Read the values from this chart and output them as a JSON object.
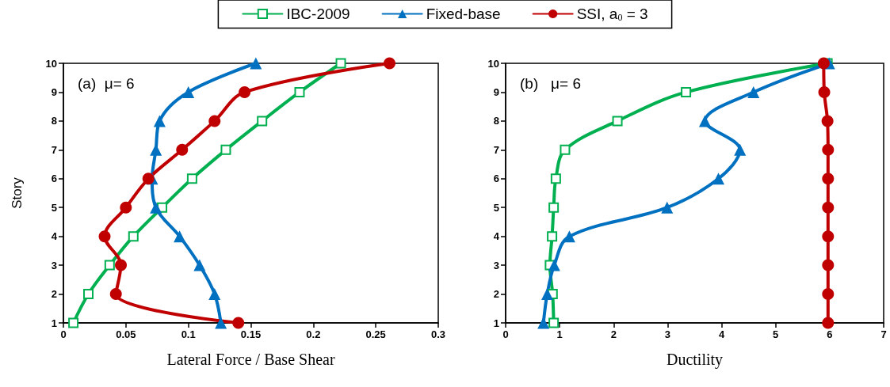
{
  "chart_data": [
    {
      "type": "line",
      "xlabel": "Lateral Force / Base Shear",
      "ylabel": "Story",
      "annotations": [
        "(a)  μ= 6"
      ],
      "xlim": [
        0,
        0.3
      ],
      "xticks": [
        0,
        0.05,
        0.1,
        0.15,
        0.2,
        0.25,
        0.3
      ],
      "ylim": [
        1,
        10
      ],
      "yticks": [
        1,
        2,
        3,
        4,
        5,
        6,
        7,
        8,
        9,
        10
      ],
      "grid": false,
      "legend": "top",
      "line_style": "solid",
      "series": [
        {
          "name": "IBC-2009",
          "color": "#00b050",
          "marker": "square",
          "x": [
            0.008,
            0.02,
            0.037,
            0.056,
            0.079,
            0.103,
            0.13,
            0.159,
            0.189,
            0.222
          ],
          "values": [
            1,
            2,
            3,
            4,
            5,
            6,
            7,
            8,
            9,
            10
          ]
        },
        {
          "name": "Fixed-base",
          "color": "#0070c0",
          "marker": "triangle",
          "x": [
            0.126,
            0.121,
            0.109,
            0.093,
            0.074,
            0.071,
            0.074,
            0.077,
            0.1,
            0.154
          ],
          "values": [
            1,
            2,
            3,
            4,
            5,
            6,
            7,
            8,
            9,
            10
          ]
        },
        {
          "name": "SSI, a$_{0}$ = 3",
          "color": "#c00000",
          "marker": "circle",
          "x": [
            0.14,
            0.042,
            0.046,
            0.033,
            0.05,
            0.068,
            0.095,
            0.121,
            0.145,
            0.261
          ],
          "values": [
            1,
            2,
            3,
            4,
            5,
            6,
            7,
            8,
            9,
            10
          ]
        }
      ]
    },
    {
      "type": "line",
      "xlabel": "Ductility",
      "annotations": [
        "(b)   μ= 6"
      ],
      "xlim": [
        0,
        7
      ],
      "xticks": [
        0,
        1,
        2,
        3,
        4,
        5,
        6,
        7
      ],
      "ylim": [
        1,
        10
      ],
      "yticks": [
        1,
        2,
        3,
        4,
        5,
        6,
        7,
        8,
        9,
        10
      ],
      "grid": false,
      "line_style": "solid",
      "series": [
        {
          "color": "#00b050",
          "marker": "square",
          "x": [
            0.89,
            0.87,
            0.82,
            0.86,
            0.89,
            0.93,
            1.1,
            2.07,
            3.34,
            5.96
          ],
          "values": [
            1,
            2,
            3,
            4,
            5,
            6,
            7,
            8,
            9,
            10
          ]
        },
        {
          "color": "#0070c0",
          "marker": "triangle",
          "x": [
            0.7,
            0.77,
            0.9,
            1.18,
            2.99,
            3.94,
            4.34,
            3.69,
            4.59,
            5.99
          ],
          "values": [
            1,
            2,
            3,
            4,
            5,
            6,
            7,
            8,
            9,
            10
          ]
        },
        {
          "color": "#c00000",
          "marker": "circle",
          "x": [
            5.97,
            5.97,
            5.97,
            5.97,
            5.97,
            5.97,
            5.97,
            5.96,
            5.9,
            5.89
          ],
          "values": [
            1,
            2,
            3,
            4,
            5,
            6,
            7,
            8,
            9,
            10
          ]
        }
      ]
    }
  ]
}
